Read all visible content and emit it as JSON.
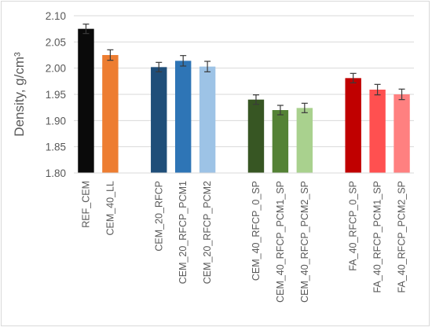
{
  "chart_data": {
    "type": "bar",
    "title": "",
    "xlabel": "",
    "ylabel": "Density, g/cm³",
    "ylim": [
      1.8,
      2.1
    ],
    "yticks": [
      "1.80",
      "1.85",
      "1.90",
      "1.95",
      "2.00",
      "2.05",
      "2.10"
    ],
    "grid": true,
    "legend": "none",
    "groups": [
      {
        "bars": [
          {
            "label": "REF_CEM",
            "value": 2.075,
            "error": 0.009,
            "color": "#0a0a0a"
          },
          {
            "label": "CEM_40_LL",
            "value": 2.025,
            "error": 0.01,
            "color": "#ed7d31"
          }
        ]
      },
      {
        "bars": [
          {
            "label": "CEM_20_RFCP",
            "value": 2.002,
            "error": 0.009,
            "color": "#1f4e79"
          },
          {
            "label": "CEM_20_RFCP_PCM1",
            "value": 2.014,
            "error": 0.01,
            "color": "#2e75b6"
          },
          {
            "label": "CEM_20_RFCP_PCM2",
            "value": 2.003,
            "error": 0.01,
            "color": "#9dc3e6"
          }
        ]
      },
      {
        "bars": [
          {
            "label": "CEM_40_RFCP_0_SP",
            "value": 1.94,
            "error": 0.009,
            "color": "#375623"
          },
          {
            "label": "CEM_40_RFCP_PCM1_SP",
            "value": 1.92,
            "error": 0.009,
            "color": "#548235"
          },
          {
            "label": "CEM_40_RFCP_PCM2_SP",
            "value": 1.924,
            "error": 0.009,
            "color": "#a9d18e"
          }
        ]
      },
      {
        "bars": [
          {
            "label": "FA_40_RFCP_0_SP",
            "value": 1.981,
            "error": 0.009,
            "color": "#c00000"
          },
          {
            "label": "FA_40_RFCP_PCM1_SP",
            "value": 1.959,
            "error": 0.01,
            "color": "#ff5050"
          },
          {
            "label": "FA_40_RFCP_PCM2_SP",
            "value": 1.95,
            "error": 0.01,
            "color": "#ff8080"
          }
        ]
      }
    ]
  }
}
